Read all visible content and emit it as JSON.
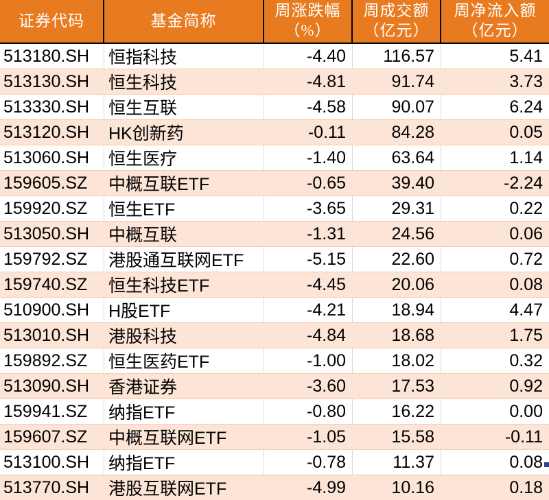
{
  "header": {
    "code": {
      "line1": "证券代码"
    },
    "name": {
      "line1": "基金简称"
    },
    "change": {
      "line1": "周涨跌幅",
      "line2": "（%）"
    },
    "volume": {
      "line1": "周成交额",
      "line2": "（亿元）"
    },
    "inflow": {
      "line1": "周净流入额",
      "line2": "（亿元）"
    }
  },
  "colors": {
    "header_bg": "#E87B20",
    "header_text": "#FFFFFF",
    "header_border": "#000000",
    "row_bg": "#FFFFFF",
    "row_alt_bg": "#FCE4D6",
    "row_line": "#F8CBAD",
    "grid_line": "#D9D9D9",
    "text": "#000000",
    "fill_handle": "#2B3F8F"
  },
  "chart_data": {
    "type": "table",
    "title": "",
    "columns": [
      "证券代码",
      "基金简称",
      "周涨跌幅（%）",
      "周成交额（亿元）",
      "周净流入额（亿元）"
    ],
    "rows": [
      [
        "513180.SH",
        "恒指科技",
        "-4.40",
        "116.57",
        "5.41"
      ],
      [
        "513130.SH",
        "恒生科技",
        "-4.81",
        "91.74",
        "3.73"
      ],
      [
        "513330.SH",
        "恒生互联",
        "-4.58",
        "90.07",
        "6.24"
      ],
      [
        "513120.SH",
        "HK创新药",
        "-0.11",
        "84.28",
        "0.05"
      ],
      [
        "513060.SH",
        "恒生医疗",
        "-1.40",
        "63.64",
        "1.14"
      ],
      [
        "159605.SZ",
        "中概互联ETF",
        "-0.65",
        "39.40",
        "-2.24"
      ],
      [
        "159920.SZ",
        "恒生ETF",
        "-3.65",
        "29.31",
        "0.22"
      ],
      [
        "513050.SH",
        "中概互联",
        "-1.31",
        "24.56",
        "0.06"
      ],
      [
        "159792.SZ",
        "港股通互联网ETF",
        "-5.15",
        "22.60",
        "0.72"
      ],
      [
        "159740.SZ",
        "恒生科技ETF",
        "-4.45",
        "20.06",
        "0.08"
      ],
      [
        "510900.SH",
        "H股ETF",
        "-4.21",
        "18.94",
        "4.47"
      ],
      [
        "513010.SH",
        "港股科技",
        "-4.84",
        "18.68",
        "1.75"
      ],
      [
        "159892.SZ",
        "恒生医药ETF",
        "-1.00",
        "18.02",
        "0.32"
      ],
      [
        "513090.SH",
        "香港证券",
        "-3.60",
        "17.53",
        "0.92"
      ],
      [
        "159941.SZ",
        "纳指ETF",
        "-0.80",
        "16.22",
        "0.00"
      ],
      [
        "159607.SZ",
        "中概互联网ETF",
        "-1.05",
        "15.58",
        "-0.11"
      ],
      [
        "513100.SH",
        "纳指ETF",
        "-0.78",
        "11.37",
        "0.08"
      ],
      [
        "513770.SH",
        "港股互联网ETF",
        "-4.99",
        "10.16",
        "0.18"
      ]
    ]
  }
}
